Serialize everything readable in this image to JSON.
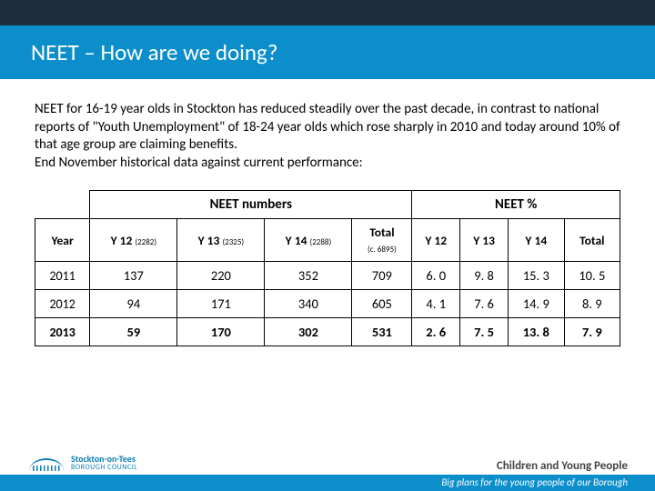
{
  "title": "NEET – How are we doing?",
  "description": "NEET for 16-19 year olds in Stockton has reduced steadily over the past decade, in contrast to national reports of \"Youth Unemployment\" of 18-24 year olds which rose sharply in 2010 and today around 10% of that age group are claiming benefits.\nEnd November historical data against current performance:",
  "table": {
    "group_headers": [
      "NEET numbers",
      "NEET %"
    ],
    "columns": [
      {
        "label": "Year",
        "sub": ""
      },
      {
        "label": "Y 12",
        "sub": "(2282)"
      },
      {
        "label": "Y 13",
        "sub": "(2325)"
      },
      {
        "label": "Y 14",
        "sub": "(2288)"
      },
      {
        "label": "Total",
        "sub": "(c. 6895)"
      },
      {
        "label": "Y 12",
        "sub": ""
      },
      {
        "label": "Y 13",
        "sub": ""
      },
      {
        "label": "Y 14",
        "sub": ""
      },
      {
        "label": "Total",
        "sub": ""
      }
    ],
    "rows": [
      {
        "year": "2011",
        "cells": [
          "137",
          "220",
          "352",
          "709",
          "6. 0",
          "9. 8",
          "15. 3",
          "10. 5"
        ]
      },
      {
        "year": "2012",
        "cells": [
          "94",
          "171",
          "340",
          "605",
          "4. 1",
          "7. 6",
          "14. 9",
          "8. 9"
        ]
      },
      {
        "year": "2013",
        "cells": [
          "59",
          "170",
          "302",
          "531",
          "2. 6",
          "7. 5",
          "13. 8",
          "7. 9"
        ]
      }
    ]
  },
  "footer": {
    "logo_main": "Stockton-on-Tees",
    "logo_sub": "BOROUGH COUNCIL",
    "right_label": "Children and Young People",
    "tagline": "Big plans for the young people of our Borough"
  },
  "colors": {
    "top_bar": "#1c2e3e",
    "title_bar": "#0c8ecb",
    "text": "#000000",
    "border": "#000000",
    "logo": "#0b7eb3"
  }
}
